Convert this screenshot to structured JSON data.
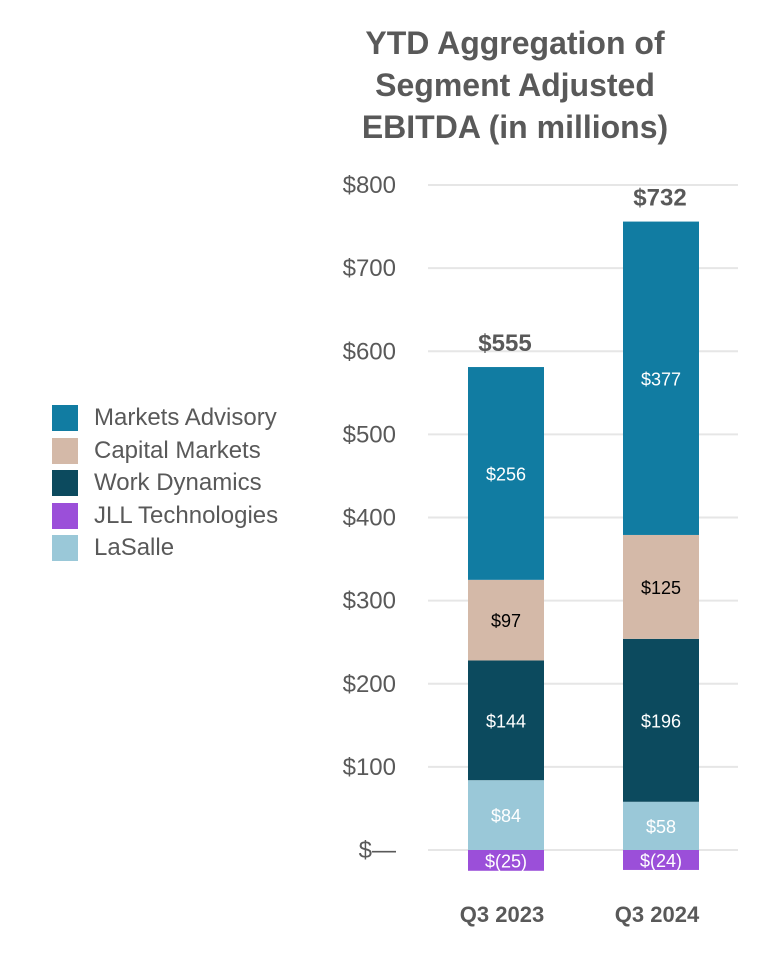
{
  "chart_data": {
    "type": "bar",
    "stacked": true,
    "title": [
      "YTD Aggregation of",
      "Segment Adjusted",
      "EBITDA (in millions)"
    ],
    "categories": [
      "Q3 2023",
      "Q3 2024"
    ],
    "ylim": [
      0,
      800
    ],
    "yticks": [
      {
        "value": 0,
        "label": "$—"
      },
      {
        "value": 100,
        "label": "$100"
      },
      {
        "value": 200,
        "label": "$200"
      },
      {
        "value": 300,
        "label": "$300"
      },
      {
        "value": 400,
        "label": "$400"
      },
      {
        "value": 500,
        "label": "$500"
      },
      {
        "value": 600,
        "label": "$600"
      },
      {
        "value": 700,
        "label": "$700"
      },
      {
        "value": 800,
        "label": "$800"
      }
    ],
    "grid": true,
    "legend_position": "left",
    "series": [
      {
        "name": "JLL Technologies",
        "color": "#9b4fd9",
        "label_color": "#ffffff",
        "values": [
          -25,
          -24
        ],
        "labels": [
          "$(25)",
          "$(24)"
        ]
      },
      {
        "name": "LaSalle",
        "color": "#9ac8d8",
        "label_color": "#ffffff",
        "values": [
          84,
          58
        ],
        "labels": [
          "$84",
          "$58"
        ]
      },
      {
        "name": "Work Dynamics",
        "color": "#0c4a5e",
        "label_color": "#ffffff",
        "values": [
          144,
          196
        ],
        "labels": [
          "$144",
          "$196"
        ]
      },
      {
        "name": "Capital Markets",
        "color": "#d4b9a8",
        "label_color": "#000000",
        "values": [
          97,
          125
        ],
        "labels": [
          "$97",
          "$125"
        ]
      },
      {
        "name": "Markets Advisory",
        "color": "#117ca2",
        "label_color": "#ffffff",
        "values": [
          256,
          377
        ],
        "labels": [
          "$256",
          "$377"
        ]
      }
    ],
    "legend_order": [
      "Markets Advisory",
      "Capital Markets",
      "Work Dynamics",
      "JLL Technologies",
      "LaSalle"
    ],
    "totals": [
      555,
      732
    ],
    "total_labels": [
      "$555",
      "$732"
    ]
  }
}
